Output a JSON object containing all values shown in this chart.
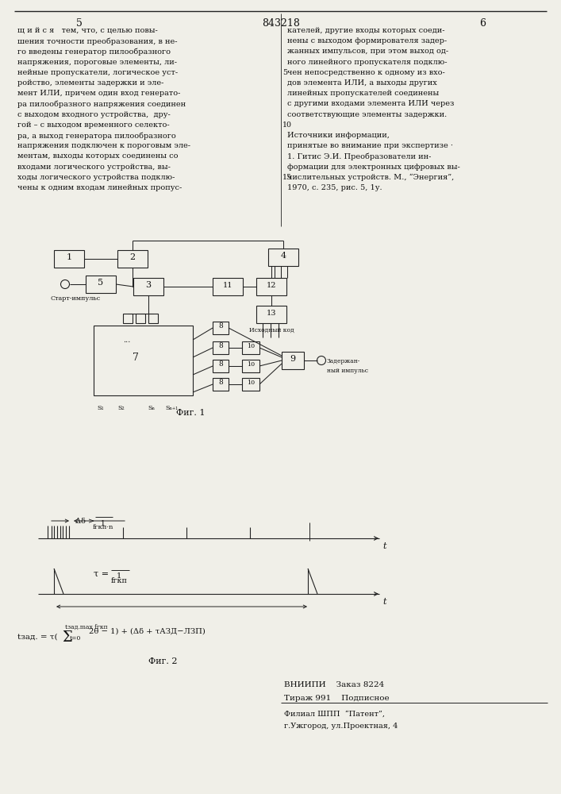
{
  "page_bg": "#f0efe8",
  "title_patent": "843218",
  "col_left_num": "5",
  "col_right_num": "6",
  "text_left": [
    "щ и й с я   тем, что, с целью повы-",
    "шения точности преобразования, в не-",
    "го введены генератор пилообразного",
    "напряжения, пороговые элементы, ли-",
    "нейные пропускатели, логическое уст-",
    "ройство, элементы задержки и эле-",
    "мент ИЛИ, причем один вход генерато-",
    "ра пилообразного напряжения соединен",
    "с выходом входного устройства,  дру-",
    "гой – с выходом временного селекто-",
    "ра, а выход генератора пилообразного",
    "напряжения подключен к пороговым эле-",
    "ментам, выходы которых соединены со",
    "входами логического устройства, вы-",
    "ходы логического устройства подклю-",
    "чены к одним входам линейных пропус-"
  ],
  "text_right": [
    "кателей, другие входы которых соеди-",
    "нены с выходом формирователя задер-",
    "жанных импульсов, при этом выход од-",
    "ного линейного пропускателя подклю-",
    "чен непосредственно к одному из вхо-",
    "дов элемента ИЛИ, а выходы других",
    "линейных пропускателей соединены",
    "с другими входами элемента ИЛИ через",
    "соответствующие элементы задержки.",
    "",
    "Источники информации,",
    "принятые во внимание при экспертизе ·",
    "1. Гитис Э.И. Преобразователи ин-",
    "формации для электронных цифровых вы-",
    "числительных устройств. М., “Энергия”,",
    "1970, с. 235, рис. 5, 1у."
  ],
  "fig1_caption": "Фиг. 1",
  "fig2_caption": "Фиг. 2",
  "vniipii_line1": "ВНИИПИ    Заказ 8224",
  "vniipii_line2": "Тираж 991    Подписное",
  "vniipii_line3": "Филиал ШПП  “Патент”,",
  "vniipii_line4": "г.Ужгород, ул.Проектная, 4"
}
